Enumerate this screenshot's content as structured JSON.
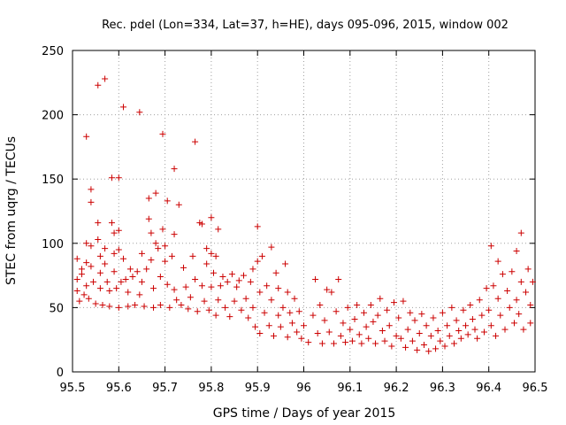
{
  "chart_data": {
    "type": "scatter",
    "title": "Rec. pdel (Lon=334, Lat=37, h=HE), days 095-096, 2015, window 002",
    "xlabel": "GPS time / Days of year 2015",
    "ylabel": "STEC from uqrg / TECUs",
    "xlim": [
      95.5,
      96.5
    ],
    "ylim": [
      0,
      250
    ],
    "xticks": [
      95.5,
      95.6,
      95.7,
      95.8,
      95.9,
      96.0,
      96.1,
      96.2,
      96.3,
      96.4,
      96.5
    ],
    "xtick_labels": [
      "95.5",
      "95.6",
      "95.7",
      "95.8",
      "95.9",
      "96",
      "96.1",
      "96.2",
      "96.3",
      "96.4",
      "96.5"
    ],
    "yticks": [
      0,
      50,
      100,
      150,
      200,
      250
    ],
    "ytick_labels": [
      "0",
      "50",
      "100",
      "150",
      "200",
      "250"
    ],
    "grid": true,
    "marker": "+",
    "marker_color": "#cc0000",
    "series": [
      {
        "name": "STEC",
        "points": [
          [
            95.51,
            88
          ],
          [
            95.51,
            72
          ],
          [
            95.51,
            63
          ],
          [
            95.515,
            55
          ],
          [
            95.52,
            80
          ],
          [
            95.52,
            76
          ],
          [
            95.525,
            60
          ],
          [
            95.53,
            183
          ],
          [
            95.53,
            100
          ],
          [
            95.53,
            85
          ],
          [
            95.53,
            67
          ],
          [
            95.535,
            57
          ],
          [
            95.54,
            142
          ],
          [
            95.54,
            132
          ],
          [
            95.54,
            98
          ],
          [
            95.54,
            82
          ],
          [
            95.545,
            70
          ],
          [
            95.55,
            53
          ],
          [
            95.555,
            223
          ],
          [
            95.555,
            116
          ],
          [
            95.555,
            103
          ],
          [
            95.56,
            90
          ],
          [
            95.56,
            77
          ],
          [
            95.56,
            65
          ],
          [
            95.565,
            52
          ],
          [
            95.57,
            228
          ],
          [
            95.57,
            96
          ],
          [
            95.57,
            84
          ],
          [
            95.575,
            70
          ],
          [
            95.58,
            63
          ],
          [
            95.58,
            51
          ],
          [
            95.585,
            151
          ],
          [
            95.585,
            116
          ],
          [
            95.59,
            108
          ],
          [
            95.59,
            92
          ],
          [
            95.59,
            78
          ],
          [
            95.595,
            65
          ],
          [
            95.6,
            151
          ],
          [
            95.6,
            110
          ],
          [
            95.6,
            95
          ],
          [
            95.6,
            50
          ],
          [
            95.605,
            70
          ],
          [
            95.61,
            206
          ],
          [
            95.61,
            88
          ],
          [
            95.615,
            72
          ],
          [
            95.62,
            62
          ],
          [
            95.62,
            51
          ],
          [
            95.625,
            80
          ],
          [
            95.63,
            74
          ],
          [
            95.635,
            52
          ],
          [
            95.64,
            78
          ],
          [
            95.645,
            202
          ],
          [
            95.645,
            60
          ],
          [
            95.65,
            92
          ],
          [
            95.65,
            70
          ],
          [
            95.655,
            51
          ],
          [
            95.66,
            80
          ],
          [
            95.665,
            135
          ],
          [
            95.665,
            119
          ],
          [
            95.67,
            108
          ],
          [
            95.67,
            87
          ],
          [
            95.675,
            65
          ],
          [
            95.675,
            50
          ],
          [
            95.68,
            139
          ],
          [
            95.68,
            100
          ],
          [
            95.685,
            96
          ],
          [
            95.69,
            74
          ],
          [
            95.69,
            52
          ],
          [
            95.695,
            185
          ],
          [
            95.695,
            111
          ],
          [
            95.7,
            98
          ],
          [
            95.7,
            86
          ],
          [
            95.705,
            133
          ],
          [
            95.705,
            68
          ],
          [
            95.71,
            50
          ],
          [
            95.715,
            90
          ],
          [
            95.72,
            107
          ],
          [
            95.72,
            158
          ],
          [
            95.72,
            64
          ],
          [
            95.725,
            56
          ],
          [
            95.73,
            130
          ],
          [
            95.735,
            52
          ],
          [
            95.74,
            81
          ],
          [
            95.745,
            66
          ],
          [
            95.75,
            49
          ],
          [
            95.755,
            58
          ],
          [
            95.76,
            90
          ],
          [
            95.765,
            179
          ],
          [
            95.765,
            72
          ],
          [
            95.77,
            47
          ],
          [
            95.775,
            116
          ],
          [
            95.78,
            115
          ],
          [
            95.78,
            67
          ],
          [
            95.785,
            55
          ],
          [
            95.79,
            96
          ],
          [
            95.79,
            84
          ],
          [
            95.795,
            48
          ],
          [
            95.8,
            120
          ],
          [
            95.8,
            92
          ],
          [
            95.8,
            66
          ],
          [
            95.805,
            77
          ],
          [
            95.81,
            90
          ],
          [
            95.81,
            44
          ],
          [
            95.815,
            111
          ],
          [
            95.815,
            56
          ],
          [
            95.82,
            67
          ],
          [
            95.825,
            74
          ],
          [
            95.83,
            50
          ],
          [
            95.835,
            70
          ],
          [
            95.84,
            43
          ],
          [
            95.845,
            76
          ],
          [
            95.85,
            55
          ],
          [
            95.855,
            66
          ],
          [
            95.86,
            71
          ],
          [
            95.865,
            48
          ],
          [
            95.87,
            75
          ],
          [
            95.875,
            57
          ],
          [
            95.88,
            42
          ],
          [
            95.885,
            70
          ],
          [
            95.89,
            80
          ],
          [
            95.89,
            50
          ],
          [
            95.895,
            35
          ],
          [
            95.9,
            113
          ],
          [
            95.9,
            86
          ],
          [
            95.905,
            62
          ],
          [
            95.905,
            30
          ],
          [
            95.91,
            90
          ],
          [
            95.915,
            46
          ],
          [
            95.92,
            67
          ],
          [
            95.925,
            36
          ],
          [
            95.93,
            97
          ],
          [
            95.93,
            56
          ],
          [
            95.935,
            28
          ],
          [
            95.94,
            77
          ],
          [
            95.945,
            65
          ],
          [
            95.945,
            44
          ],
          [
            95.95,
            35
          ],
          [
            95.955,
            50
          ],
          [
            95.96,
            84
          ],
          [
            95.965,
            62
          ],
          [
            95.965,
            27
          ],
          [
            95.97,
            46
          ],
          [
            95.975,
            38
          ],
          [
            95.98,
            57
          ],
          [
            95.985,
            31
          ],
          [
            95.99,
            47
          ],
          [
            95.995,
            26
          ],
          [
            96.0,
            36
          ],
          [
            96.01,
            23
          ],
          [
            96.02,
            44
          ],
          [
            96.025,
            72
          ],
          [
            96.03,
            30
          ],
          [
            96.035,
            52
          ],
          [
            96.04,
            22
          ],
          [
            96.045,
            40
          ],
          [
            96.05,
            64
          ],
          [
            96.055,
            31
          ],
          [
            96.06,
            62
          ],
          [
            96.065,
            22
          ],
          [
            96.07,
            47
          ],
          [
            96.075,
            72
          ],
          [
            96.08,
            28
          ],
          [
            96.085,
            38
          ],
          [
            96.09,
            23
          ],
          [
            96.095,
            50
          ],
          [
            96.1,
            33
          ],
          [
            96.105,
            24
          ],
          [
            96.11,
            41
          ],
          [
            96.115,
            52
          ],
          [
            96.12,
            29
          ],
          [
            96.125,
            22
          ],
          [
            96.13,
            46
          ],
          [
            96.135,
            35
          ],
          [
            96.14,
            26
          ],
          [
            96.145,
            52
          ],
          [
            96.15,
            39
          ],
          [
            96.155,
            22
          ],
          [
            96.16,
            44
          ],
          [
            96.165,
            57
          ],
          [
            96.17,
            32
          ],
          [
            96.175,
            24
          ],
          [
            96.18,
            48
          ],
          [
            96.185,
            36
          ],
          [
            96.19,
            20
          ],
          [
            96.195,
            54
          ],
          [
            96.2,
            28
          ],
          [
            96.205,
            42
          ],
          [
            96.21,
            26
          ],
          [
            96.215,
            55
          ],
          [
            96.22,
            19
          ],
          [
            96.225,
            33
          ],
          [
            96.23,
            46
          ],
          [
            96.235,
            24
          ],
          [
            96.24,
            40
          ],
          [
            96.245,
            17
          ],
          [
            96.25,
            30
          ],
          [
            96.255,
            45
          ],
          [
            96.26,
            21
          ],
          [
            96.265,
            36
          ],
          [
            96.27,
            16
          ],
          [
            96.275,
            28
          ],
          [
            96.28,
            42
          ],
          [
            96.285,
            18
          ],
          [
            96.29,
            32
          ],
          [
            96.295,
            24
          ],
          [
            96.3,
            46
          ],
          [
            96.305,
            20
          ],
          [
            96.31,
            36
          ],
          [
            96.315,
            28
          ],
          [
            96.32,
            50
          ],
          [
            96.325,
            22
          ],
          [
            96.33,
            40
          ],
          [
            96.335,
            32
          ],
          [
            96.34,
            26
          ],
          [
            96.345,
            48
          ],
          [
            96.35,
            36
          ],
          [
            96.355,
            29
          ],
          [
            96.36,
            52
          ],
          [
            96.365,
            41
          ],
          [
            96.37,
            33
          ],
          [
            96.375,
            26
          ],
          [
            96.38,
            56
          ],
          [
            96.385,
            44
          ],
          [
            96.39,
            31
          ],
          [
            96.395,
            65
          ],
          [
            96.4,
            48
          ],
          [
            96.405,
            98
          ],
          [
            96.405,
            36
          ],
          [
            96.41,
            67
          ],
          [
            96.415,
            28
          ],
          [
            96.42,
            86
          ],
          [
            96.42,
            57
          ],
          [
            96.425,
            44
          ],
          [
            96.43,
            76
          ],
          [
            96.435,
            33
          ],
          [
            96.44,
            63
          ],
          [
            96.445,
            50
          ],
          [
            96.45,
            78
          ],
          [
            96.455,
            38
          ],
          [
            96.46,
            94
          ],
          [
            96.46,
            56
          ],
          [
            96.465,
            45
          ],
          [
            96.47,
            108
          ],
          [
            96.47,
            70
          ],
          [
            96.475,
            33
          ],
          [
            96.48,
            62
          ],
          [
            96.485,
            80
          ],
          [
            96.49,
            52
          ],
          [
            96.49,
            38
          ],
          [
            96.495,
            70
          ]
        ]
      }
    ]
  }
}
